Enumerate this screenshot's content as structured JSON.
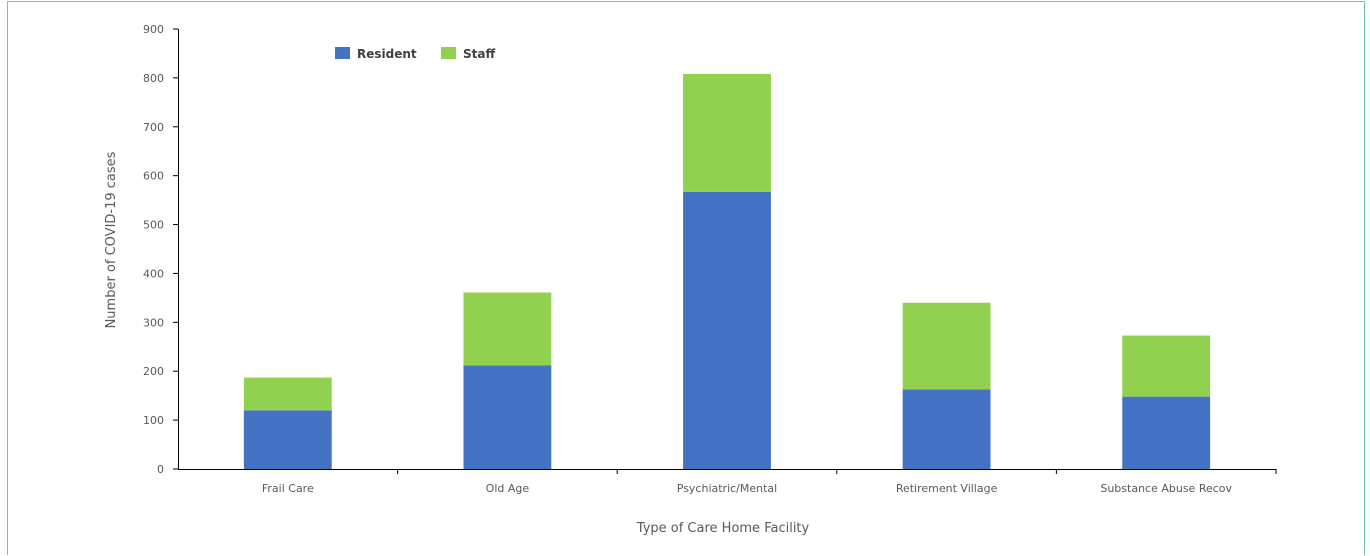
{
  "chart_data": {
    "type": "bar",
    "stacked": true,
    "categories": [
      "Frail Care",
      "Old Age",
      "Psychiatric/Mental",
      "Retirement Village",
      "Substance Abuse Recov"
    ],
    "series": [
      {
        "name": "Resident",
        "color": "#4472c4",
        "values": [
          120,
          212,
          567,
          163,
          148
        ]
      },
      {
        "name": "Staff",
        "color": "#92d050",
        "values": [
          67,
          149,
          241,
          177,
          125
        ]
      }
    ],
    "xlabel": "Type of Care Home Facility",
    "ylabel": "Number of COVID-19 cases",
    "ylim": [
      0,
      900
    ],
    "yticks": [
      0,
      100,
      200,
      300,
      400,
      500,
      600,
      700,
      800,
      900
    ],
    "legend": "top-left",
    "grid": false
  }
}
